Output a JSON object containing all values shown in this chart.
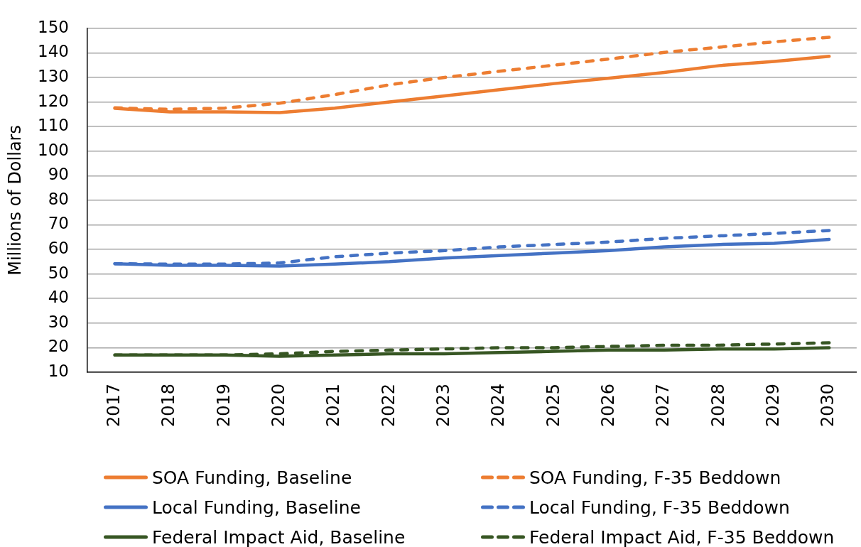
{
  "chart_data": {
    "type": "line",
    "ylabel": "Millions of Dollars",
    "categories": [
      "2017",
      "2018",
      "2019",
      "2020",
      "2021",
      "2022",
      "2023",
      "2024",
      "2025",
      "2026",
      "2027",
      "2028",
      "2029",
      "2030"
    ],
    "ylim": [
      10,
      150
    ],
    "yticks": [
      10,
      20,
      30,
      40,
      50,
      60,
      70,
      80,
      90,
      100,
      110,
      120,
      130,
      140,
      150
    ],
    "grid": "y",
    "legend": "bottom",
    "marker": "none",
    "series": [
      {
        "name": "SOA Funding, Baseline",
        "color": "#ed7d31",
        "line_style": "solid",
        "values": [
          117.4,
          116,
          116,
          115.7,
          117.5,
          120,
          122.5,
          125,
          127.5,
          129.7,
          132,
          134.8,
          136.5,
          138.6
        ]
      },
      {
        "name": "SOA Funding, F-35 Beddown",
        "color": "#ed7d31",
        "line_style": "dashed",
        "values": [
          117.6,
          117,
          117.5,
          119.5,
          123,
          127,
          130,
          132.5,
          135,
          137.5,
          140.2,
          142.3,
          144.5,
          146.3
        ]
      },
      {
        "name": "Local Funding, Baseline",
        "color": "#4472c4",
        "line_style": "solid",
        "values": [
          54.2,
          53.5,
          53.5,
          53.2,
          54,
          55,
          56.5,
          57.5,
          58.5,
          59.5,
          61,
          62,
          62.5,
          64.1
        ]
      },
      {
        "name": "Local Funding, F-35 Beddown",
        "color": "#4472c4",
        "line_style": "dashed",
        "values": [
          54.2,
          54,
          54,
          54.5,
          57,
          58.5,
          59.5,
          61,
          62,
          63,
          64.5,
          65.5,
          66.5,
          67.7
        ]
      },
      {
        "name": "Federal Impact Aid, Baseline",
        "color": "#375623",
        "line_style": "solid",
        "values": [
          17,
          17,
          17,
          16.5,
          17,
          17.5,
          17.5,
          18,
          18.5,
          19,
          19,
          19.5,
          19.5,
          20
        ]
      },
      {
        "name": "Federal Impact Aid, F-35 Beddown",
        "color": "#375623",
        "line_style": "dashed",
        "values": [
          17,
          17,
          17,
          17.5,
          18.5,
          19,
          19.5,
          20,
          20,
          20.5,
          21,
          21,
          21.5,
          22
        ]
      }
    ]
  }
}
